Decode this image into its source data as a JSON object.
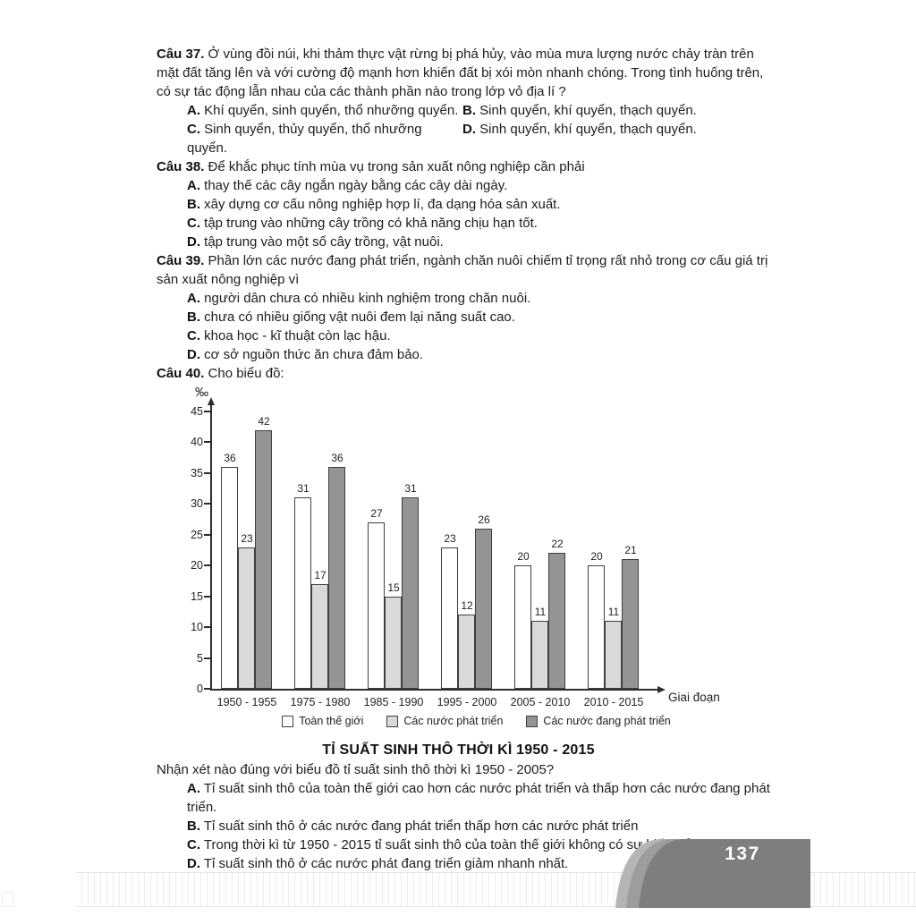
{
  "page": {
    "number": "137"
  },
  "questions": [
    {
      "label": "Câu 37.",
      "text": "Ở vùng đồi núi, khi thảm thực vật rừng bị phá hủy, vào mùa mưa lượng nước chảy tràn trên mặt đất tăng lên và với cường độ mạnh hơn khiến đất bị xói mòn nhanh chóng. Trong tình huống trên, có sự tác động lẫn nhau của các thành phần nào trong lớp vỏ địa lí ?",
      "columns": 2,
      "options": [
        {
          "label": "A.",
          "text": "Khí quyển, sinh quyển, thổ nhưỡng quyển."
        },
        {
          "label": "B.",
          "text": "Sinh quyển, khí quyển, thạch quyển."
        },
        {
          "label": "C.",
          "text": "Sinh quyển, thủy quyển, thổ nhưỡng quyển."
        },
        {
          "label": "D.",
          "text": "Sinh quyển, khí quyển, thạch quyển."
        }
      ]
    },
    {
      "label": "Câu 38.",
      "text": "Để khắc phục tính mùa vụ trong sản xuất nông nghiệp cần phải",
      "columns": 1,
      "options": [
        {
          "label": "A.",
          "text": "thay thế các cây ngắn ngày bằng các cây dài ngày."
        },
        {
          "label": "B.",
          "text": "xây dựng cơ cấu nông nghiệp hợp lí, đa dạng hóa sản xuất."
        },
        {
          "label": "C.",
          "text": "tập trung vào những cây trồng có khả năng chịu hạn tốt."
        },
        {
          "label": "D.",
          "text": "tập trung vào một số cây trồng, vật nuôi."
        }
      ]
    },
    {
      "label": "Câu 39.",
      "text": "Phần lớn các nước đang phát triển, ngành chăn nuôi chiếm tỉ trọng rất nhỏ trong cơ cấu giá trị sản xuất nông nghiệp vì",
      "columns": 1,
      "options": [
        {
          "label": "A.",
          "text": "người dân chưa có nhiều kinh nghiệm trong chăn nuôi."
        },
        {
          "label": "B.",
          "text": "chưa có nhiều giống vật nuôi đem lại năng suất cao."
        },
        {
          "label": "C.",
          "text": "khoa học - kĩ thuật còn lạc hậu."
        },
        {
          "label": "D.",
          "text": "cơ sở nguồn thức ăn chưa đảm bảo."
        }
      ]
    },
    {
      "label": "Câu 40.",
      "text": "Cho biểu đồ:",
      "columns": 1
    }
  ],
  "chart_data": {
    "type": "bar",
    "title": "TỈ SUẤT SINH THÔ THỜI KÌ 1950 - 2015",
    "unit": "‰",
    "xlabel": "Giai đoạn",
    "categories": [
      "1950 - 1955",
      "1975 - 1980",
      "1985 - 1990",
      "1995 - 2000",
      "2005 - 2010",
      "2010 - 2015"
    ],
    "series": [
      {
        "name": "Toàn thế giới",
        "color": "#ffffff",
        "values": [
          36,
          31,
          27,
          23,
          20,
          20
        ]
      },
      {
        "name": "Các nước phát triển",
        "color": "#d9d9d9",
        "values": [
          23,
          17,
          15,
          12,
          11,
          11
        ]
      },
      {
        "name": "Các nước đang phát triển",
        "color": "#949494",
        "values": [
          42,
          36,
          31,
          26,
          22,
          21
        ]
      }
    ],
    "ylim": [
      0,
      45
    ],
    "yticks": [
      0,
      5,
      10,
      15,
      20,
      25,
      30,
      35,
      40,
      45
    ],
    "grid": false,
    "legend_position": "bottom"
  },
  "question40": {
    "prompt": "Nhận xét nào đúng với biểu đồ tỉ suất sinh thô thời kì 1950 - 2005?",
    "options": [
      {
        "label": "A.",
        "text": "Tỉ suất sinh thô của toàn thế giới cao hơn các nước phát triển và thấp hơn các nước đang phát triển."
      },
      {
        "label": "B.",
        "text": "Tỉ suất sinh thô ở các nước đang phát triển thấp hơn các nước phát triển"
      },
      {
        "label": "C.",
        "text": "Trong thời kì từ 1950 - 2015 tỉ suất sinh thô của toàn thế giới không có sự biến đổi."
      },
      {
        "label": "D.",
        "text": "Tỉ suất sinh thô ở các nước phát đang triển giảm nhanh nhất."
      }
    ]
  }
}
